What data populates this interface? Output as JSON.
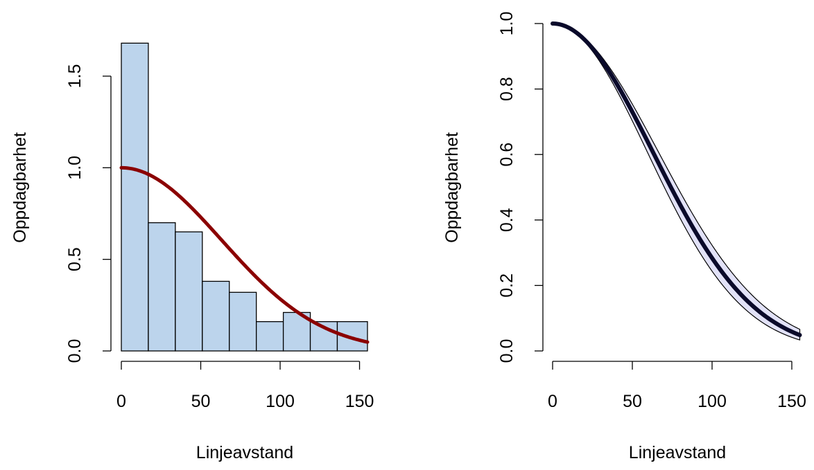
{
  "colors": {
    "bar_fill": "#bcd4ec",
    "bar_stroke": "#000000",
    "curve_red": "#8b0000",
    "curve_dark": "#0a0a2a",
    "band_fill": "#e2e2f8"
  },
  "chart_data": [
    {
      "type": "bar",
      "subtype": "histogram",
      "xlabel": "Linjeavstand",
      "ylabel": "Oppdagbarhet",
      "xlim": [
        0,
        155
      ],
      "ylim": [
        0,
        1.8
      ],
      "x_ticks": [
        "0",
        "50",
        "100",
        "150"
      ],
      "y_ticks": [
        "0.0",
        "0.5",
        "1.0",
        "1.5"
      ],
      "bin_edges": [
        0,
        17,
        34,
        51,
        68,
        85,
        102,
        119,
        136,
        155
      ],
      "values": [
        1.68,
        0.7,
        0.65,
        0.38,
        0.32,
        0.16,
        0.21,
        0.16,
        0.16
      ],
      "series": [
        {
          "type": "line",
          "description": "half-normal detection function",
          "sigma": 63,
          "x_range": [
            0,
            155
          ]
        }
      ]
    },
    {
      "type": "line",
      "xlabel": "Linjeavstand",
      "ylabel": "Oppdagbarhet",
      "xlim": [
        0,
        155
      ],
      "ylim": [
        0,
        1.0
      ],
      "x_ticks": [
        "0",
        "50",
        "100",
        "150"
      ],
      "y_ticks": [
        "0.0",
        "0.2",
        "0.4",
        "0.6",
        "0.8",
        "1.0"
      ],
      "series": [
        {
          "type": "line",
          "role": "estimate",
          "sigma": 63,
          "x_range": [
            0,
            155
          ]
        },
        {
          "type": "band",
          "role": "confidence band",
          "sigma_lower": 59.5,
          "sigma_upper": 66.5,
          "x_range": [
            0,
            155
          ]
        }
      ]
    }
  ]
}
